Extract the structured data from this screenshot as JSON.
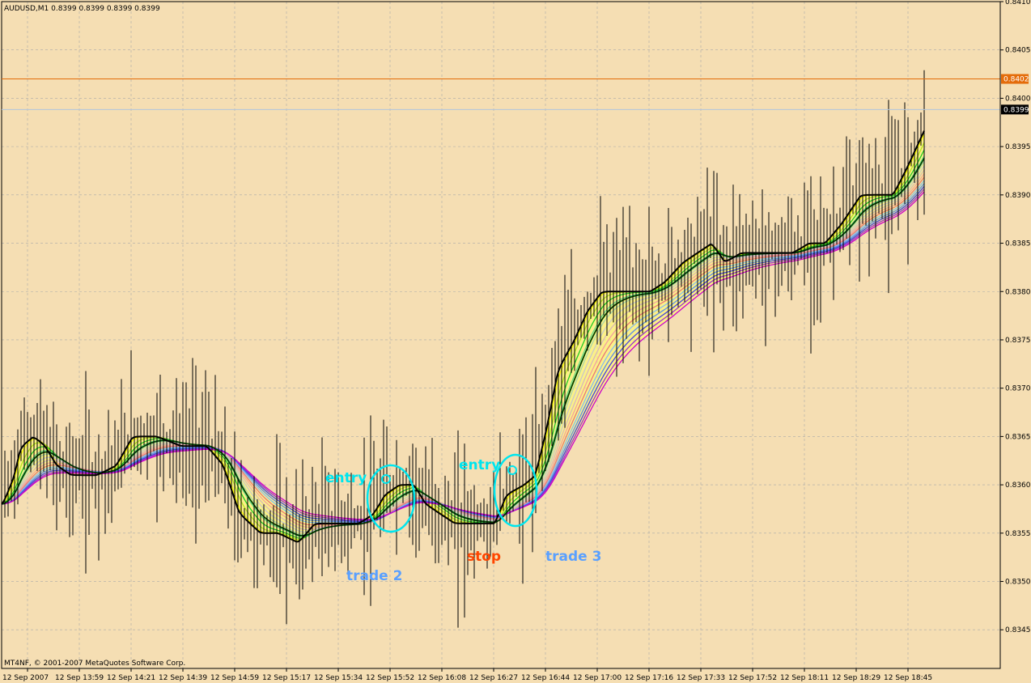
{
  "colors": {
    "background": "#f5deb3",
    "grid": "#a9a9a9",
    "candle": "#000000",
    "price_line": "#e46c0a",
    "bid_line": "#b0c4de",
    "fill": "#ffff66",
    "annotation_cyan": "#00e5ee",
    "annotation_blue": "#5aa0ff",
    "annotation_red": "#ff4500"
  },
  "chart_data": {
    "type": "candlestick",
    "symbol_header": "AUDUSD,M1  0.8399 0.8399 0.8399 0.8399",
    "footer": "MT4NF, © 2001-2007 MetaQuotes Software Corp.",
    "ylim": [
      0.8341,
      0.841
    ],
    "y_ticks": [
      "0.8410",
      "0.8405",
      "0.8400",
      "0.8395",
      "0.8390",
      "0.8385",
      "0.8380",
      "0.8375",
      "0.8370",
      "0.8365",
      "0.8360",
      "0.8355",
      "0.8350",
      "0.8345"
    ],
    "x_ticks": [
      "12 Sep 2007",
      "12 Sep 13:59",
      "12 Sep 14:21",
      "12 Sep 14:39",
      "12 Sep 14:59",
      "12 Sep 15:17",
      "12 Sep 15:34",
      "12 Sep 15:52",
      "12 Sep 16:08",
      "12 Sep 16:27",
      "12 Sep 16:44",
      "12 Sep 17:00",
      "12 Sep 17:16",
      "12 Sep 17:33",
      "12 Sep 17:52",
      "12 Sep 18:11",
      "12 Sep 18:29",
      "12 Sep 18:45"
    ],
    "price_markers": [
      {
        "label": "0.8402",
        "value": 0.8402,
        "color": "#e46c0a"
      },
      {
        "label": "0.8399",
        "value": 0.8399,
        "color": "#000000"
      }
    ],
    "price_path": [
      [
        0,
        0.8358
      ],
      [
        14,
        0.8361
      ],
      [
        22,
        0.8364
      ],
      [
        38,
        0.8365
      ],
      [
        52,
        0.8364
      ],
      [
        66,
        0.8362
      ],
      [
        84,
        0.8361
      ],
      [
        100,
        0.8361
      ],
      [
        116,
        0.8361
      ],
      [
        140,
        0.8362
      ],
      [
        160,
        0.8365
      ],
      [
        190,
        0.8365
      ],
      [
        220,
        0.8364
      ],
      [
        252,
        0.8364
      ],
      [
        272,
        0.8362
      ],
      [
        292,
        0.8357
      ],
      [
        318,
        0.8355
      ],
      [
        340,
        0.8355
      ],
      [
        365,
        0.8354
      ],
      [
        385,
        0.8356
      ],
      [
        410,
        0.8356
      ],
      [
        440,
        0.8356
      ],
      [
        458,
        0.8357
      ],
      [
        472,
        0.8359
      ],
      [
        490,
        0.836
      ],
      [
        508,
        0.836
      ],
      [
        522,
        0.8358
      ],
      [
        540,
        0.8357
      ],
      [
        558,
        0.8356
      ],
      [
        574,
        0.8356
      ],
      [
        590,
        0.8356
      ],
      [
        608,
        0.8356
      ],
      [
        622,
        0.8359
      ],
      [
        644,
        0.836
      ],
      [
        658,
        0.8361
      ],
      [
        672,
        0.8366
      ],
      [
        686,
        0.8372
      ],
      [
        706,
        0.8375
      ],
      [
        722,
        0.8378
      ],
      [
        740,
        0.838
      ],
      [
        772,
        0.838
      ],
      [
        800,
        0.838
      ],
      [
        818,
        0.8381
      ],
      [
        840,
        0.8383
      ],
      [
        858,
        0.8384
      ],
      [
        876,
        0.8385
      ],
      [
        892,
        0.8383
      ],
      [
        912,
        0.8384
      ],
      [
        934,
        0.8384
      ],
      [
        956,
        0.8384
      ],
      [
        976,
        0.8384
      ],
      [
        996,
        0.8385
      ],
      [
        1016,
        0.8385
      ],
      [
        1036,
        0.8387
      ],
      [
        1060,
        0.839
      ],
      [
        1082,
        0.839
      ],
      [
        1100,
        0.839
      ],
      [
        1118,
        0.8393
      ],
      [
        1140,
        0.8397
      ]
    ],
    "annotations": [
      {
        "id": "entry-1",
        "text": "entry",
        "value": 0.836,
        "color": "#00e5ee"
      },
      {
        "id": "entry-2",
        "text": "entry",
        "value": 0.8362,
        "color": "#00e5ee"
      },
      {
        "id": "trade-2",
        "text": "trade 2",
        "value": 0.835,
        "color": "#5aa0ff"
      },
      {
        "id": "stop",
        "text": "stop",
        "value": 0.8352,
        "color": "#ff4500"
      },
      {
        "id": "trade-3",
        "text": "trade 3",
        "value": 0.8352,
        "color": "#5aa0ff"
      }
    ]
  }
}
